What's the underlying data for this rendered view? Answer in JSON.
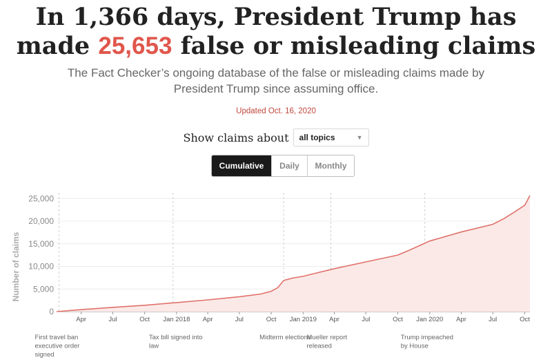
{
  "header": {
    "headline_prefix": "In 1,366 days, President Trump has made",
    "headline_count": "25,653",
    "headline_suffix": "false or misleading claims",
    "subhead": "The Fact Checker’s ongoing database of the false or misleading claims made by President Trump since assuming office.",
    "updated": "Updated Oct. 16, 2020"
  },
  "filter": {
    "label": "Show claims about",
    "selected": "all topics"
  },
  "view_toggle": {
    "options": [
      "Cumulative",
      "Daily",
      "Monthly"
    ],
    "active": "Cumulative"
  },
  "colors": {
    "accent": "#e0574c",
    "line": "#e0716a",
    "area": "#fbe9e7",
    "text": "#222222"
  },
  "chart_data": {
    "type": "area",
    "ylabel": "Number of claims",
    "xlabel": "",
    "ylim": [
      0,
      25653
    ],
    "yticks": [
      0,
      5000,
      10000,
      15000,
      20000,
      25000
    ],
    "ytick_labels": [
      "0",
      "5,000",
      "10,000",
      "15,000",
      "20,000",
      "25,000"
    ],
    "xlim": [
      "2017-01-20",
      "2020-10-16"
    ],
    "xticks": [
      {
        "date": "2017-04-01",
        "label": "Apr"
      },
      {
        "date": "2017-07-01",
        "label": "Jul"
      },
      {
        "date": "2017-10-01",
        "label": "Oct"
      },
      {
        "date": "2018-01-01",
        "label": "Jan 2018"
      },
      {
        "date": "2018-04-01",
        "label": "Apr"
      },
      {
        "date": "2018-07-01",
        "label": "Jul"
      },
      {
        "date": "2018-10-01",
        "label": "Oct"
      },
      {
        "date": "2019-01-01",
        "label": "Jan 2019"
      },
      {
        "date": "2019-04-01",
        "label": "Apr"
      },
      {
        "date": "2019-07-01",
        "label": "Jul"
      },
      {
        "date": "2019-10-01",
        "label": "Oct"
      },
      {
        "date": "2020-01-01",
        "label": "Jan 2020"
      },
      {
        "date": "2020-04-01",
        "label": "Apr"
      },
      {
        "date": "2020-07-01",
        "label": "Jul"
      },
      {
        "date": "2020-10-01",
        "label": "Oct"
      }
    ],
    "grid": true,
    "series": [
      {
        "x": [
          "2017-01-20",
          "2017-04-01",
          "2017-07-01",
          "2017-10-01",
          "2018-01-01",
          "2018-04-01",
          "2018-07-01",
          "2018-09-01",
          "2018-10-01",
          "2018-10-20",
          "2018-11-06",
          "2018-12-01",
          "2019-01-01",
          "2019-02-01",
          "2019-04-01",
          "2019-07-01",
          "2019-10-01",
          "2019-11-01",
          "2020-01-01",
          "2020-04-01",
          "2020-07-01",
          "2020-08-01",
          "2020-09-01",
          "2020-10-01",
          "2020-10-16"
        ],
        "y": [
          0,
          450,
          950,
          1400,
          2000,
          2600,
          3300,
          3900,
          4500,
          5300,
          6900,
          7400,
          7800,
          8400,
          9500,
          11000,
          12500,
          13500,
          15600,
          17600,
          19300,
          20500,
          22000,
          23500,
          25653
        ]
      }
    ],
    "annotations": [
      {
        "date": "2017-01-27",
        "text": "First travel ban executive order signed",
        "lines": [
          "First travel ban",
          "executive order",
          "signed"
        ]
      },
      {
        "date": "2017-12-22",
        "text": "Tax bill signed into law",
        "lines": [
          "Tax bill signed into",
          "law"
        ]
      },
      {
        "date": "2018-11-06",
        "text": "Midterm elections",
        "lines": [
          "Midterm elections"
        ]
      },
      {
        "date": "2019-03-22",
        "text": "Mueller report released",
        "lines": [
          "Mueller report",
          "released"
        ]
      },
      {
        "date": "2019-12-18",
        "text": "Trump impeached by House",
        "lines": [
          "Trump impeached",
          "by House"
        ]
      }
    ]
  }
}
